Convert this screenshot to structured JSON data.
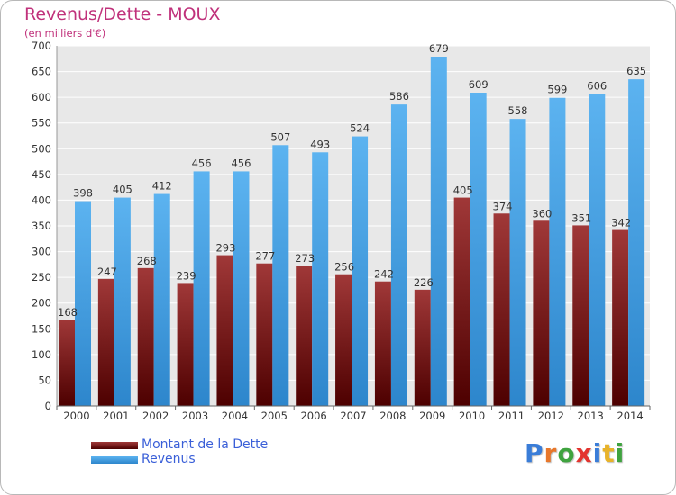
{
  "header": {
    "title": "Revenus/Dette - MOUX",
    "subtitle": "(en milliers d'€)"
  },
  "legend": {
    "debt_label": "Montant de la Dette",
    "revenue_label": "Revenus"
  },
  "logo": {
    "text": "Proxiti",
    "letters": [
      "P",
      "r",
      "o",
      "x",
      "i",
      "t",
      "i"
    ],
    "colors": [
      "#3a7dd8",
      "#e8772a",
      "#3fa33f",
      "#e3342f",
      "#3a7dd8",
      "#e8b32a",
      "#3fa33f"
    ]
  },
  "colors": {
    "debt": "#7a1a1a",
    "revenue": "#4da3e6",
    "title": "#c0317b",
    "legend_text": "#3a5fd8"
  },
  "chart_data": {
    "type": "bar",
    "title": "Revenus/Dette - MOUX",
    "subtitle": "(en milliers d'€)",
    "categories": [
      "2000",
      "2001",
      "2002",
      "2003",
      "2004",
      "2005",
      "2006",
      "2007",
      "2008",
      "2009",
      "2010",
      "2011",
      "2012",
      "2013",
      "2014"
    ],
    "series": [
      {
        "name": "Montant de la Dette",
        "values": [
          168,
          247,
          268,
          239,
          293,
          277,
          273,
          256,
          242,
          226,
          405,
          374,
          360,
          351,
          342
        ]
      },
      {
        "name": "Revenus",
        "values": [
          398,
          405,
          412,
          456,
          456,
          507,
          493,
          524,
          586,
          679,
          609,
          558,
          599,
          606,
          635
        ]
      }
    ],
    "ylim": [
      0,
      700
    ],
    "yticks": [
      0,
      50,
      100,
      150,
      200,
      250,
      300,
      350,
      400,
      450,
      500,
      550,
      600,
      650,
      700
    ],
    "grid": true,
    "legend_position": "bottom-left"
  }
}
